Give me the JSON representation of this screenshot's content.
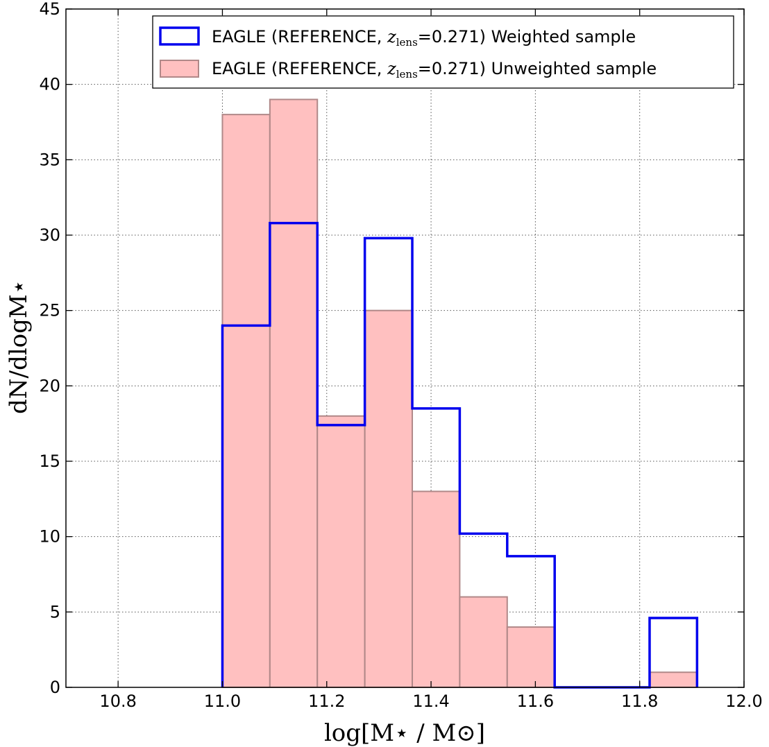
{
  "chart_data": {
    "type": "histogram",
    "xlabel": "log[M⋆ / M⊙]",
    "ylabel": "dN/dlogM⋆",
    "xlim": [
      10.7,
      12.0
    ],
    "ylim": [
      0,
      45
    ],
    "grid": true,
    "legend_position": "top-right",
    "x_ticks": [
      "10.8",
      "11.0",
      "11.2",
      "11.4",
      "11.6",
      "11.8",
      "12.0"
    ],
    "x_tick_values": [
      10.8,
      11.0,
      11.2,
      11.4,
      11.6,
      11.8,
      12.0
    ],
    "y_ticks": [
      "0",
      "5",
      "10",
      "15",
      "20",
      "25",
      "30",
      "35",
      "40",
      "45"
    ],
    "y_tick_values": [
      0,
      5,
      10,
      15,
      20,
      25,
      30,
      35,
      40,
      45
    ],
    "bin_edges": [
      11.0,
      11.091,
      11.182,
      11.273,
      11.364,
      11.455,
      11.546,
      11.637,
      11.728,
      11.819,
      11.91
    ],
    "series": [
      {
        "name": "Weighted sample",
        "style": "step",
        "color": "#0000ee",
        "values": [
          24.0,
          30.8,
          17.4,
          29.8,
          18.5,
          10.2,
          8.7,
          0,
          0,
          4.6
        ]
      },
      {
        "name": "Unweighted sample",
        "style": "filled",
        "color": "#ffc0c0",
        "edge_color": "#b08888",
        "values": [
          38,
          39,
          18,
          25,
          13,
          6,
          4,
          0,
          0,
          1
        ]
      }
    ],
    "legend": [
      {
        "prefix": "EAGLE (REFERENCE, ",
        "var": "z",
        "sub": "lens",
        "suffix": "=0.271) Weighted sample"
      },
      {
        "prefix": "EAGLE (REFERENCE, ",
        "var": "z",
        "sub": "lens",
        "suffix": "=0.271) Unweighted sample"
      }
    ]
  }
}
